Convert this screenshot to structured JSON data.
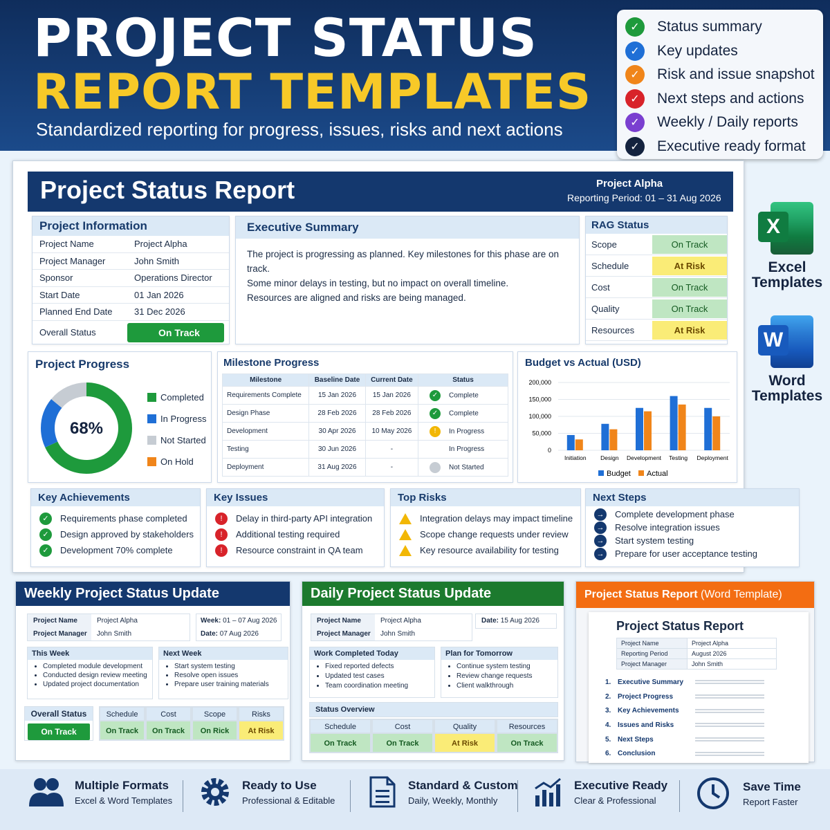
{
  "header": {
    "title1": "PROJECT STATUS",
    "title2": "REPORT TEMPLATES",
    "subtitle": "Standardized reporting for progress, issues, risks and next actions"
  },
  "features": [
    {
      "label": "Status summary",
      "color": "#1e9a3c"
    },
    {
      "label": "Key updates",
      "color": "#1f6fd6"
    },
    {
      "label": "Risk and issue snapshot",
      "color": "#f0851a"
    },
    {
      "label": "Next steps and actions",
      "color": "#d8232a"
    },
    {
      "label": "Weekly / Daily reports",
      "color": "#7a3fd0"
    },
    {
      "label": "Executive ready format",
      "color": "#14233f"
    }
  ],
  "report": {
    "title": "Project Status Report",
    "project": "Project Alpha",
    "period": "Reporting Period: 01 – 31 Aug 2026"
  },
  "info": {
    "title": "Project Information",
    "rows": [
      [
        "Project Name",
        "Project Alpha"
      ],
      [
        "Project Manager",
        "John Smith"
      ],
      [
        "Sponsor",
        "Operations Director"
      ],
      [
        "Start Date",
        "01 Jan 2026"
      ],
      [
        "Planned End Date",
        "31 Dec 2026"
      ]
    ],
    "overall_label": "Overall Status",
    "overall_value": "On Track"
  },
  "exec": {
    "title": "Executive Summary",
    "lines": [
      "The project is progressing as planned. Key milestones for this phase are on track.",
      "Some minor delays in testing, but no impact on overall timeline.",
      "Resources are aligned and risks are being managed."
    ]
  },
  "rag": {
    "title": "RAG Status",
    "rows": [
      [
        "Scope",
        "On Track"
      ],
      [
        "Schedule",
        "At Risk"
      ],
      [
        "Cost",
        "On Track"
      ],
      [
        "Quality",
        "On Track"
      ],
      [
        "Resources",
        "At Risk"
      ]
    ]
  },
  "progress": {
    "title": "Project Progress",
    "percent": "68%",
    "legend": [
      "Completed",
      "In Progress",
      "Not Started",
      "On Hold"
    ]
  },
  "milestones": {
    "title": "Milestone Progress",
    "headers": [
      "Milestone",
      "Baseline Date",
      "Current Date",
      "Status"
    ],
    "rows": [
      [
        "Requirements Complete",
        "15 Jan 2026",
        "15 Jan 2026",
        "Complete"
      ],
      [
        "Design Phase",
        "28 Feb 2026",
        "28 Feb 2026",
        "Complete"
      ],
      [
        "Development",
        "30 Apr 2026",
        "10 May 2026",
        "In Progress"
      ],
      [
        "Testing",
        "30 Jun 2026",
        "-",
        "In Progress"
      ],
      [
        "Deployment",
        "31 Aug 2026",
        "-",
        "Not Started"
      ]
    ]
  },
  "chart_data": {
    "type": "bar",
    "title": "Budget vs Actual (USD)",
    "categories": [
      "Initiation",
      "Design",
      "Development",
      "Testing",
      "Deployment"
    ],
    "series": [
      {
        "name": "Budget",
        "values": [
          45000,
          78000,
          125000,
          160000,
          125000
        ],
        "color": "#1f6fd6"
      },
      {
        "name": "Actual",
        "values": [
          32000,
          62000,
          115000,
          135000,
          100000
        ],
        "color": "#f0851a"
      }
    ],
    "ylim": [
      0,
      200000
    ],
    "yticks": [
      "200,000",
      "150,000",
      "100,000",
      "50,000",
      "0"
    ],
    "legend": "bottom"
  },
  "achievements": {
    "title": "Key Achievements",
    "items": [
      "Requirements phase completed",
      "Design approved by stakeholders",
      "Development 70% complete"
    ]
  },
  "issues": {
    "title": "Key Issues",
    "items": [
      "Delay in third-party API integration",
      "Additional testing required",
      "Resource constraint in QA team"
    ]
  },
  "risks": {
    "title": "Top Risks",
    "items": [
      "Integration delays may impact timeline",
      "Scope change requests under review",
      "Key resource availability for testing"
    ]
  },
  "next": {
    "title": "Next Steps",
    "items": [
      "Complete development phase",
      "Resolve integration issues",
      "Start system testing",
      "Prepare for user acceptance testing"
    ]
  },
  "side": {
    "excel1": "Excel",
    "excel2": "Templates",
    "word1": "Word",
    "word2": "Templates"
  },
  "weekly": {
    "title": "Weekly Project Status Update",
    "pn_l": "Project Name",
    "pn_v": "Project Alpha",
    "pm_l": "Project Manager",
    "pm_v": "John Smith",
    "week_l": "Week:",
    "week_v": "01 – 07 Aug 2026",
    "date_l": "Date:",
    "date_v": "07 Aug 2026",
    "this_week": "This Week",
    "this_items": [
      "Completed module development",
      "Conducted design review meeting",
      "Updated project documentation"
    ],
    "next_week": "Next Week",
    "next_items": [
      "Start system testing",
      "Resolve open issues",
      "Prepare user training materials"
    ],
    "overall_l": "Overall Status",
    "overall_v": "On Track",
    "status": [
      [
        "Schedule",
        "On Track"
      ],
      [
        "Cost",
        "On Track"
      ],
      [
        "Scope",
        "On Rick"
      ],
      [
        "Risks",
        "At Risk"
      ]
    ]
  },
  "daily": {
    "title": "Daily Project Status Update",
    "pn_l": "Project Name",
    "pn_v": "Project Alpha",
    "pm_l": "Project Manager",
    "pm_v": "John Smith",
    "date_l": "Date:",
    "date_v": "15 Aug 2026",
    "done": "Work Completed Today",
    "done_items": [
      "Fixed reported defects",
      "Updated test cases",
      "Team coordination meeting"
    ],
    "plan": "Plan for Tomorrow",
    "plan_items": [
      "Continue system testing",
      "Review change requests",
      "Client walkthrough"
    ],
    "overview": "Status Overview",
    "status": [
      [
        "Schedule",
        "On Track"
      ],
      [
        "Cost",
        "On Track"
      ],
      [
        "Quality",
        "At Risk"
      ],
      [
        "Resources",
        "On Track"
      ]
    ]
  },
  "word": {
    "title_a": "Project Status Report",
    "title_b": " (Word Template)",
    "doc_title": "Project Status Report",
    "rows": [
      [
        "Project Name",
        "Project Alpha"
      ],
      [
        "Reporting Period",
        "August 2026"
      ],
      [
        "Project Manager",
        "John Smith"
      ]
    ],
    "toc": [
      "Executive Summary",
      "Project Progress",
      "Key Achievements",
      "Issues and Risks",
      "Next Steps",
      "Conclusion"
    ]
  },
  "footer": [
    {
      "t": "Multiple Formats",
      "s": "Excel & Word Templates"
    },
    {
      "t": "Ready to Use",
      "s": "Professional & Editable"
    },
    {
      "t": "Standard & Custom",
      "s": "Daily, Weekly, Monthly"
    },
    {
      "t": "Executive Ready",
      "s": "Clear & Professional"
    },
    {
      "t": "Save Time",
      "s": "Report Faster"
    }
  ]
}
